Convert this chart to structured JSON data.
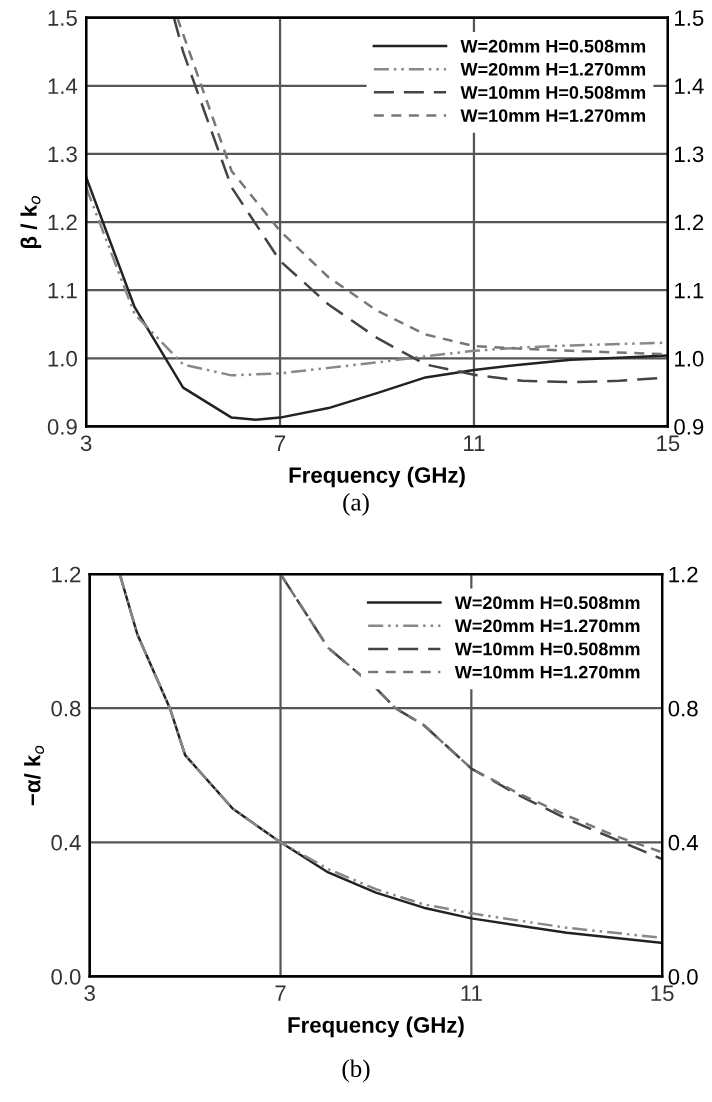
{
  "chart_data": [
    {
      "type": "line",
      "xlabel": "Frequency (GHz)",
      "ylabel": "β / k$_{o}$",
      "annotations": [
        "(a)"
      ],
      "xlim": [
        3,
        15
      ],
      "xticks": [
        3,
        7,
        11,
        15
      ],
      "ylim": [
        0.9,
        1.5
      ],
      "yticks": [
        0.9,
        {
          "value": 1,
          "label": "1.0"
        },
        1.1,
        1.2,
        1.3,
        1.4,
        1.5
      ],
      "y2lim": [
        0.9,
        1.5
      ],
      "y2ticks": [
        0.9,
        {
          "value": 1,
          "label": "1.0"
        },
        1.1,
        1.2,
        1.3,
        1.4,
        1.5
      ],
      "grid": true,
      "legend": "top right",
      "series": [
        {
          "name": "W=20mm H=0.508mm",
          "color": "#222222",
          "line_style": "solid",
          "x": [
            3,
            4,
            5,
            6,
            6.5,
            7,
            8,
            9,
            10,
            11,
            12,
            13,
            14,
            15
          ],
          "values": [
            1.266,
            1.075,
            0.957,
            0.913,
            0.91,
            0.913,
            0.927,
            0.949,
            0.972,
            0.983,
            0.991,
            0.998,
            1.001,
            1.004
          ]
        },
        {
          "name": "W=20mm H=1.270mm",
          "color": "#888888",
          "line_style": "dashdot",
          "x": [
            3,
            4,
            5,
            6,
            7,
            8,
            9,
            10,
            11,
            12,
            13,
            15
          ],
          "values": [
            1.251,
            1.065,
            0.991,
            0.975,
            0.978,
            0.986,
            0.994,
            1.003,
            1.011,
            1.016,
            1.019,
            1.023
          ]
        },
        {
          "name": "W=10mm H=0.508mm",
          "color": "#444444",
          "line_style": "dashed",
          "x": [
            4.81,
            5,
            6,
            7,
            8,
            9,
            10,
            11,
            12,
            13,
            14,
            15
          ],
          "values": [
            1.5,
            1.45,
            1.251,
            1.143,
            1.079,
            1.03,
            0.991,
            0.976,
            0.967,
            0.965,
            0.967,
            0.972
          ]
        },
        {
          "name": "W=10mm H=1.270mm",
          "color": "#777777",
          "line_style": "dotted",
          "x": [
            4.88,
            6,
            7,
            8,
            9,
            10,
            11,
            12,
            13,
            15
          ],
          "values": [
            1.5,
            1.275,
            1.187,
            1.119,
            1.07,
            1.035,
            1.018,
            1.014,
            1.011,
            1.006
          ]
        }
      ]
    },
    {
      "type": "line",
      "xlabel": "Frequency (GHz)",
      "ylabel": "−α/ k$_{o}$",
      "annotations": [
        "(b)"
      ],
      "xlim": [
        3,
        15
      ],
      "xticks": [
        3,
        7,
        11,
        15
      ],
      "ylim": [
        0.0,
        1.2
      ],
      "yticks": [
        {
          "value": 0,
          "label": "0.0"
        },
        0.4,
        0.8,
        1.2
      ],
      "y2lim": [
        0.0,
        1.2
      ],
      "y2ticks": [
        {
          "value": 0,
          "label": "0.0"
        },
        0.4,
        0.8,
        1.2
      ],
      "grid": true,
      "legend": "top right",
      "series": [
        {
          "name": "W=20mm H=0.508mm",
          "color": "#222222",
          "line_style": "solid",
          "x": [
            3.63,
            4,
            4.68,
            5,
            6,
            7,
            8,
            9,
            10,
            11,
            13,
            15
          ],
          "values": [
            1.2,
            1.02,
            0.8,
            0.66,
            0.5,
            0.4,
            0.31,
            0.25,
            0.205,
            0.173,
            0.13,
            0.1
          ]
        },
        {
          "name": "W=20mm H=1.270mm",
          "color": "#888888",
          "line_style": "dashdot",
          "x": [
            3.63,
            4,
            4.68,
            5,
            6,
            7,
            8,
            9,
            10,
            11,
            13,
            15
          ],
          "values": [
            1.2,
            1.02,
            0.8,
            0.66,
            0.5,
            0.4,
            0.32,
            0.26,
            0.215,
            0.188,
            0.145,
            0.115
          ]
        },
        {
          "name": "W=10mm H=0.508mm",
          "color": "#444444",
          "line_style": "dashed",
          "x": [
            7,
            8,
            9,
            9.41,
            10,
            11,
            12,
            13,
            14,
            15
          ],
          "values": [
            1.2,
            0.98,
            0.86,
            0.8,
            0.75,
            0.62,
            0.54,
            0.47,
            0.41,
            0.35
          ]
        },
        {
          "name": "W=10mm H=1.270mm",
          "color": "#777777",
          "line_style": "dotted",
          "x": [
            7,
            8,
            9,
            9.41,
            10,
            11,
            12,
            13,
            14,
            15
          ],
          "values": [
            1.2,
            0.98,
            0.86,
            0.8,
            0.75,
            0.62,
            0.545,
            0.48,
            0.42,
            0.37
          ]
        }
      ]
    }
  ]
}
